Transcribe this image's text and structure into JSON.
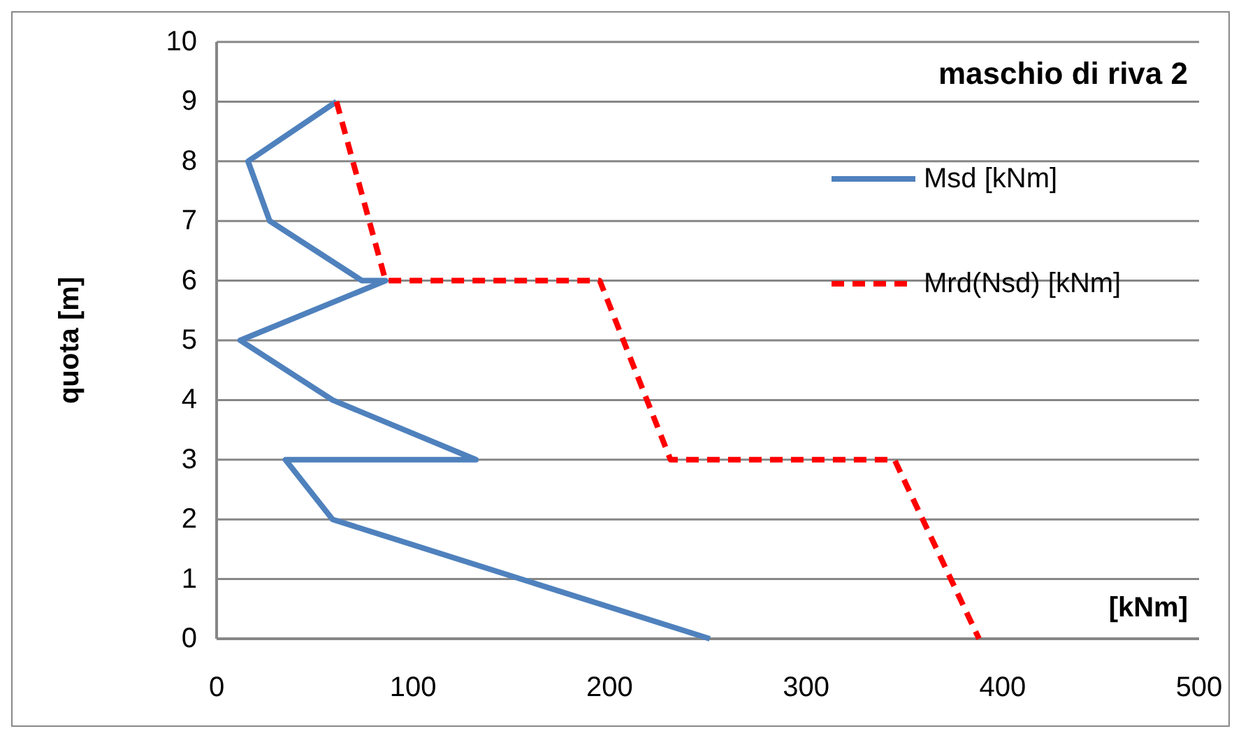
{
  "chart_data": {
    "type": "line",
    "title": "maschio di riva 2",
    "xlabel": "[kNm]",
    "ylabel": "quota [m]",
    "xlim": [
      0,
      500
    ],
    "xticks": [
      0,
      100,
      200,
      300,
      400,
      500
    ],
    "ylim": [
      0,
      10
    ],
    "yticks": [
      0,
      1,
      2,
      3,
      4,
      5,
      6,
      7,
      8,
      9,
      10
    ],
    "grid": "y",
    "legend": "right",
    "series": [
      {
        "name": "Msd [kNm]",
        "color": "#4f81bd",
        "line_style": "solid",
        "x": [
          251,
          59,
          35,
          132,
          59,
          12,
          86,
          74,
          27,
          16,
          61
        ],
        "values": [
          0,
          2,
          3,
          3,
          4,
          5,
          6,
          6,
          7,
          8,
          9
        ]
      },
      {
        "name": "Mrd(Nsd) [kNm]",
        "color": "#ff0000",
        "line_style": "dashed",
        "x": [
          61,
          86,
          195,
          231,
          345,
          388
        ],
        "values": [
          9,
          6,
          6,
          3,
          3,
          0
        ]
      }
    ]
  }
}
